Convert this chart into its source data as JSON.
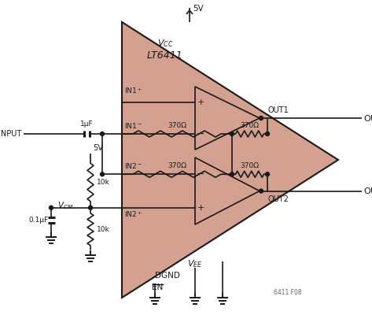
{
  "bg_color": "#ffffff",
  "chip_fill": "#d4a090",
  "chip_edge": "#1a1a1a",
  "line_color": "#1a1a1a",
  "text_color": "#1a1a1a",
  "chip_label": "LT6411",
  "supply_voltage": "5V",
  "res_value": "370Ω",
  "r1_label": "10k",
  "r2_label": "10k",
  "cap1_label": "1μF",
  "cap2_label": "0.1μF",
  "input_label": "INPUT",
  "in1p_label": "IN1",
  "in1m_label": "IN1",
  "in2m_label": "IN2",
  "in2p_label": "IN2",
  "out1_label": "OUT1",
  "out2_label": "OUT2",
  "outp_label": "OUT",
  "outm_label": "OUT",
  "vcm_label": "V",
  "vcm_sub": "CM",
  "fig_label": "6411 F08"
}
